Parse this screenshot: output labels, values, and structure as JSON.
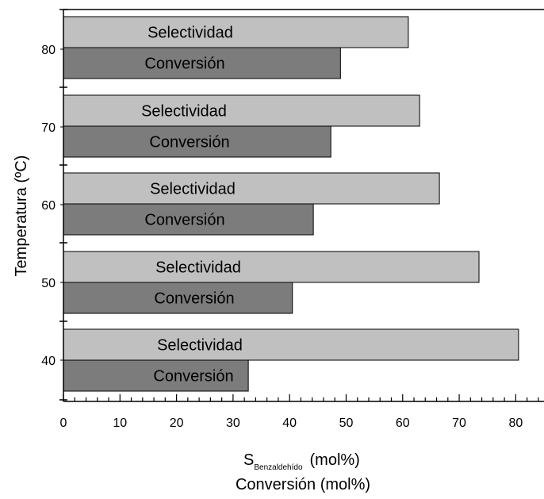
{
  "chart_data": {
    "type": "bar",
    "orientation": "horizontal",
    "ylabel": "Temperatura (ºC)",
    "xlabel_line1_main": "S",
    "xlabel_line1_sub": "Benzaldehído",
    "xlabel_line1_unit": "(mol%)",
    "xlabel_line2": "Conversión (mol%)",
    "categories": [
      "80",
      "70",
      "60",
      "50",
      "40"
    ],
    "series": [
      {
        "name": "Selectividad",
        "values": [
          61,
          63,
          66.5,
          73.5,
          80.5
        ],
        "color": "#c0c0c0"
      },
      {
        "name": "Conversión",
        "values": [
          49,
          47.3,
          44.2,
          40.5,
          32.7
        ],
        "color": "#7c7c7c"
      }
    ],
    "bar_labels": [
      "Selectividad",
      "Conversión"
    ],
    "xlim": [
      0,
      85
    ],
    "xticks": [
      "0",
      "10",
      "20",
      "30",
      "40",
      "50",
      "60",
      "70",
      "80"
    ],
    "grid": false,
    "legend": "none"
  }
}
